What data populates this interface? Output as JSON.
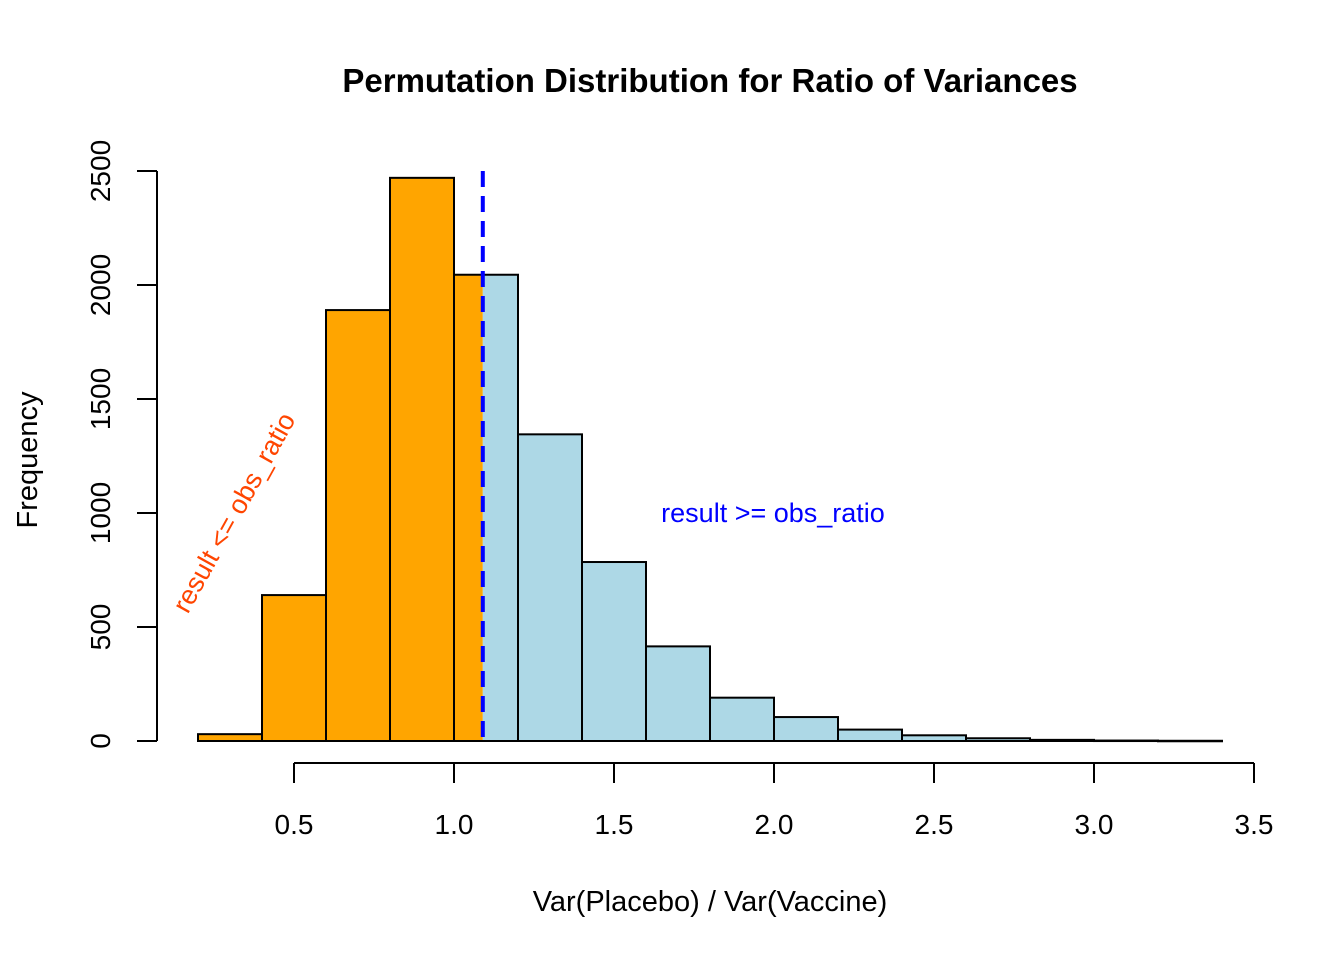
{
  "chart_data": {
    "type": "bar",
    "subtype": "histogram",
    "title": "Permutation Distribution for Ratio of Variances",
    "xlabel": "Var(Placebo) / Var(Vaccine)",
    "ylabel": "Frequency",
    "xlim": [
      0.5,
      3.5
    ],
    "ylim": [
      0,
      2500
    ],
    "x_ticks": [
      0.5,
      1.0,
      1.5,
      2.0,
      2.5,
      3.0,
      3.5
    ],
    "x_tick_labels": [
      "0.5",
      "1.0",
      "1.5",
      "2.0",
      "2.5",
      "3.0",
      "3.5"
    ],
    "y_ticks": [
      0,
      500,
      1000,
      1500,
      2000,
      2500
    ],
    "y_tick_labels": [
      "0",
      "500",
      "1000",
      "1500",
      "2000",
      "2500"
    ],
    "bin_edges": [
      0.2,
      0.4,
      0.6,
      0.8,
      1.0,
      1.2,
      1.4,
      1.6,
      1.8,
      2.0,
      2.2,
      2.4,
      2.6,
      2.8,
      3.0,
      3.2,
      3.4
    ],
    "values": [
      30,
      640,
      1890,
      2470,
      2045,
      1345,
      785,
      415,
      190,
      105,
      50,
      25,
      12,
      5,
      2,
      1
    ],
    "obs_ratio": 1.09,
    "colors": {
      "below": "#FFA500",
      "above": "#ADD8E6",
      "obs_line": "#0000FF",
      "annot_below": "#FF4500",
      "annot_above": "#0000FF"
    },
    "annotations": {
      "below": "result <= obs_ratio",
      "above": "result >= obs_ratio"
    },
    "grid": false,
    "legend": "none"
  }
}
